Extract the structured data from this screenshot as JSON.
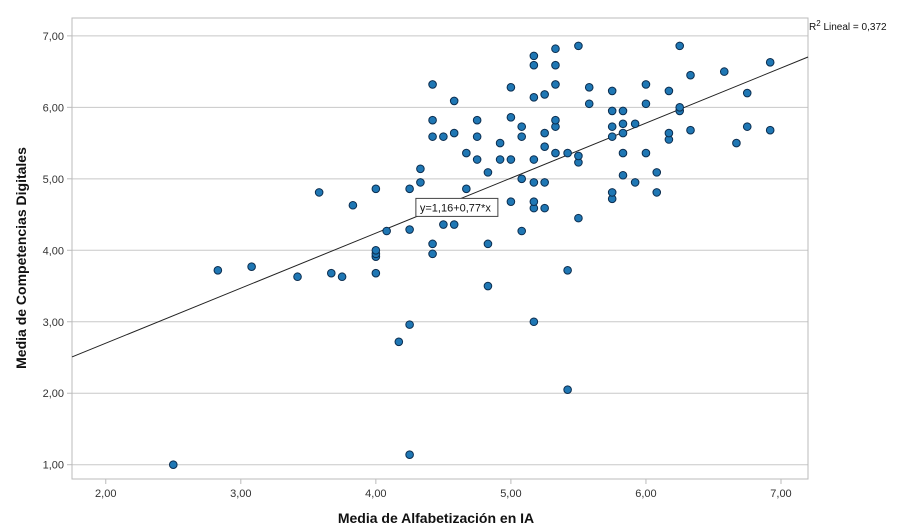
{
  "chart_data": {
    "type": "scatter",
    "xlabel": "Media de Alfabetización en IA",
    "ylabel": "Media de Competencias Digitales",
    "xlim": [
      1.75,
      7.2
    ],
    "ylim": [
      0.8,
      7.25
    ],
    "x_ticks": [
      "2,00",
      "3,00",
      "4,00",
      "5,00",
      "6,00",
      "7,00"
    ],
    "x_tick_values": [
      2,
      3,
      4,
      5,
      6,
      7
    ],
    "y_ticks": [
      "1,00",
      "2,00",
      "3,00",
      "4,00",
      "5,00",
      "6,00",
      "7,00"
    ],
    "y_tick_values": [
      1,
      2,
      3,
      4,
      5,
      6,
      7
    ],
    "grid": "horizontal",
    "fit_line": {
      "intercept": 1.16,
      "slope": 0.77,
      "equation_label": "y=1,16+0,77*x",
      "equation_anchor": [
        4.6,
        4.6
      ]
    },
    "r2_label_prefix": "R",
    "r2_label_sup": "2",
    "r2_label_rest": " Lineal = 0,372",
    "colors": {
      "marker_fill": "#1f77b4",
      "marker_stroke": "#0b2d4f",
      "fit_line": "#222222",
      "grid": "#c8c8c8",
      "axis": "#bbbbbb"
    },
    "points": [
      [
        2.5,
        1.0
      ],
      [
        2.83,
        3.72
      ],
      [
        3.08,
        3.77
      ],
      [
        3.42,
        3.63
      ],
      [
        3.58,
        4.81
      ],
      [
        3.67,
        3.68
      ],
      [
        3.75,
        3.63
      ],
      [
        3.83,
        4.63
      ],
      [
        4.0,
        3.68
      ],
      [
        4.0,
        3.91
      ],
      [
        4.0,
        3.95
      ],
      [
        4.0,
        4.0
      ],
      [
        4.0,
        4.86
      ],
      [
        4.08,
        4.27
      ],
      [
        4.17,
        2.72
      ],
      [
        4.25,
        1.14
      ],
      [
        4.25,
        2.96
      ],
      [
        4.25,
        4.29
      ],
      [
        4.25,
        4.86
      ],
      [
        4.33,
        4.95
      ],
      [
        4.33,
        5.14
      ],
      [
        4.42,
        3.95
      ],
      [
        4.42,
        4.09
      ],
      [
        4.42,
        5.59
      ],
      [
        4.42,
        5.82
      ],
      [
        4.42,
        6.32
      ],
      [
        4.5,
        4.36
      ],
      [
        4.5,
        5.59
      ],
      [
        4.58,
        4.36
      ],
      [
        4.58,
        5.64
      ],
      [
        4.58,
        6.09
      ],
      [
        4.67,
        4.86
      ],
      [
        4.67,
        5.36
      ],
      [
        4.75,
        5.27
      ],
      [
        4.75,
        5.59
      ],
      [
        4.75,
        5.82
      ],
      [
        4.83,
        3.5
      ],
      [
        4.83,
        4.09
      ],
      [
        4.83,
        4.63
      ],
      [
        4.83,
        5.09
      ],
      [
        4.92,
        5.27
      ],
      [
        4.92,
        5.5
      ],
      [
        5.0,
        4.68
      ],
      [
        5.0,
        5.27
      ],
      [
        5.0,
        5.86
      ],
      [
        5.0,
        6.28
      ],
      [
        5.08,
        4.27
      ],
      [
        5.08,
        5.0
      ],
      [
        5.08,
        5.59
      ],
      [
        5.08,
        5.73
      ],
      [
        5.17,
        3.0
      ],
      [
        5.17,
        4.59
      ],
      [
        5.17,
        4.68
      ],
      [
        5.17,
        4.95
      ],
      [
        5.17,
        5.27
      ],
      [
        5.17,
        6.14
      ],
      [
        5.17,
        6.59
      ],
      [
        5.17,
        6.72
      ],
      [
        5.25,
        4.59
      ],
      [
        5.25,
        4.95
      ],
      [
        5.25,
        5.45
      ],
      [
        5.25,
        5.64
      ],
      [
        5.25,
        6.18
      ],
      [
        5.33,
        5.36
      ],
      [
        5.33,
        5.73
      ],
      [
        5.33,
        5.82
      ],
      [
        5.33,
        6.32
      ],
      [
        5.33,
        6.59
      ],
      [
        5.33,
        6.82
      ],
      [
        5.42,
        2.05
      ],
      [
        5.42,
        3.72
      ],
      [
        5.42,
        5.36
      ],
      [
        5.5,
        4.45
      ],
      [
        5.5,
        5.23
      ],
      [
        5.5,
        5.32
      ],
      [
        5.5,
        6.86
      ],
      [
        5.58,
        6.05
      ],
      [
        5.58,
        6.28
      ],
      [
        5.75,
        4.72
      ],
      [
        5.75,
        4.81
      ],
      [
        5.75,
        5.59
      ],
      [
        5.75,
        5.73
      ],
      [
        5.75,
        5.95
      ],
      [
        5.75,
        6.23
      ],
      [
        5.83,
        5.05
      ],
      [
        5.83,
        5.36
      ],
      [
        5.83,
        5.64
      ],
      [
        5.83,
        5.77
      ],
      [
        5.83,
        5.95
      ],
      [
        5.92,
        4.95
      ],
      [
        5.92,
        5.77
      ],
      [
        6.0,
        5.36
      ],
      [
        6.0,
        6.05
      ],
      [
        6.0,
        6.32
      ],
      [
        6.08,
        4.81
      ],
      [
        6.08,
        5.09
      ],
      [
        6.17,
        5.55
      ],
      [
        6.17,
        5.64
      ],
      [
        6.17,
        6.23
      ],
      [
        6.25,
        5.95
      ],
      [
        6.25,
        6.0
      ],
      [
        6.25,
        6.86
      ],
      [
        6.33,
        5.68
      ],
      [
        6.33,
        6.45
      ],
      [
        6.58,
        6.5
      ],
      [
        6.67,
        5.5
      ],
      [
        6.75,
        5.73
      ],
      [
        6.75,
        6.2
      ],
      [
        6.92,
        5.68
      ],
      [
        6.92,
        6.63
      ]
    ]
  }
}
